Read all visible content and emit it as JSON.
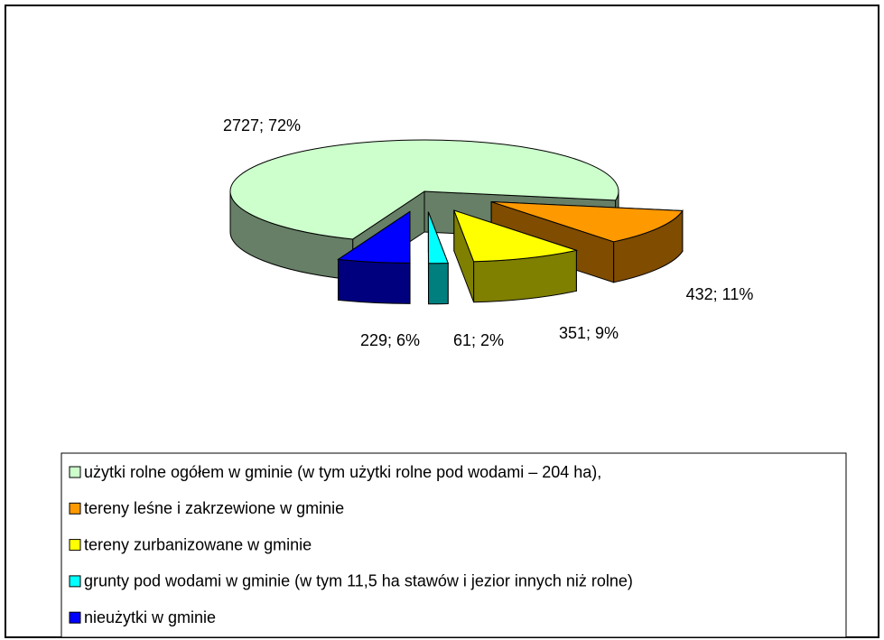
{
  "chart_data": {
    "type": "pie",
    "categories": [
      "użytki rolne ogółem w gminie (w tym użytki rolne pod wodami – 204 ha),",
      "tereny leśne i zakrzewione w gminie",
      "tereny zurbanizowane w gminie",
      "grunty pod wodami w gminie (w tym 11,5 ha stawów i jezior innych niż rolne)",
      "nieużytki w gminie"
    ],
    "values": [
      2727,
      432,
      351,
      61,
      229
    ],
    "value_labels": [
      "2727; 72%",
      "432; 11%",
      "351; 9%",
      "61; 2%",
      "229; 6%"
    ],
    "colors": [
      "#ccffcc",
      "#ff9900",
      "#ffff00",
      "#00ffff",
      "#0000ff"
    ],
    "legend": "bottom"
  }
}
